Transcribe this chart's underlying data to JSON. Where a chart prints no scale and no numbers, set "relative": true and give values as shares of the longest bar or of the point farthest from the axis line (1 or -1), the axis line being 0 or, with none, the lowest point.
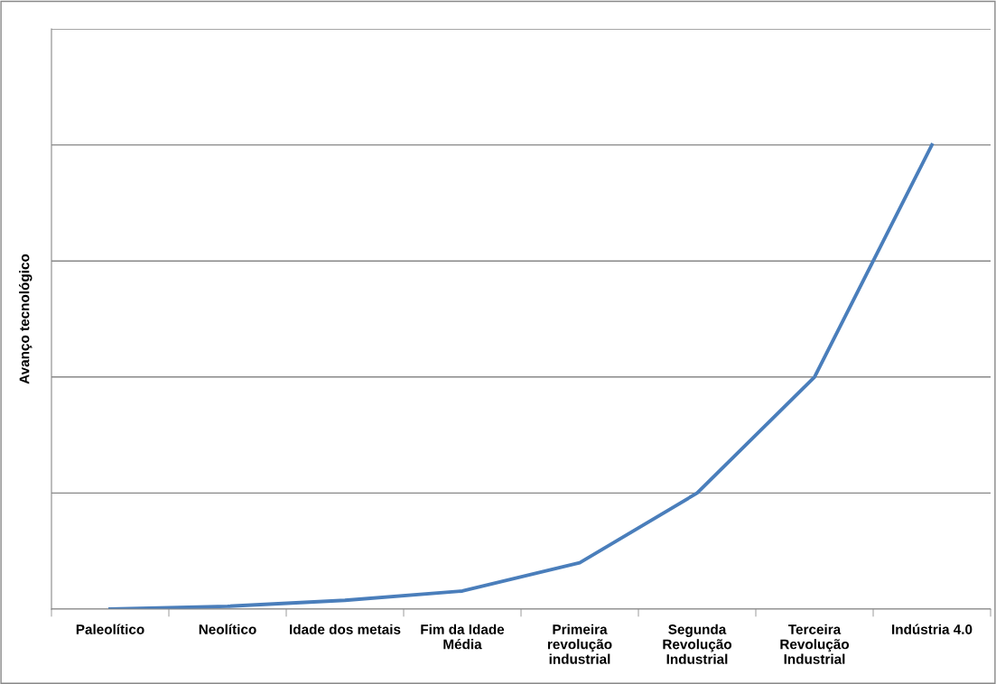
{
  "chart_data": {
    "type": "line",
    "ylabel": "Avanço tecnológico",
    "relative": true,
    "grid": "y",
    "marker": "none",
    "line_style": "solid",
    "categories": [
      "Paleolítico",
      "Neolítico",
      "Idade dos metais",
      "Fim da Idade\nMédia",
      "Primeira\nrevolução\nindustrial",
      "Segunda\nRevolução\nIndustrial",
      "Terceira\nRevolução\nIndustrial",
      "Indústria 4.0"
    ],
    "series": [
      {
        "color": "#4a7ebb",
        "values": [
          0,
          0.006,
          0.019,
          0.039,
          0.1,
          0.25,
          0.5,
          1
        ]
      }
    ]
  }
}
